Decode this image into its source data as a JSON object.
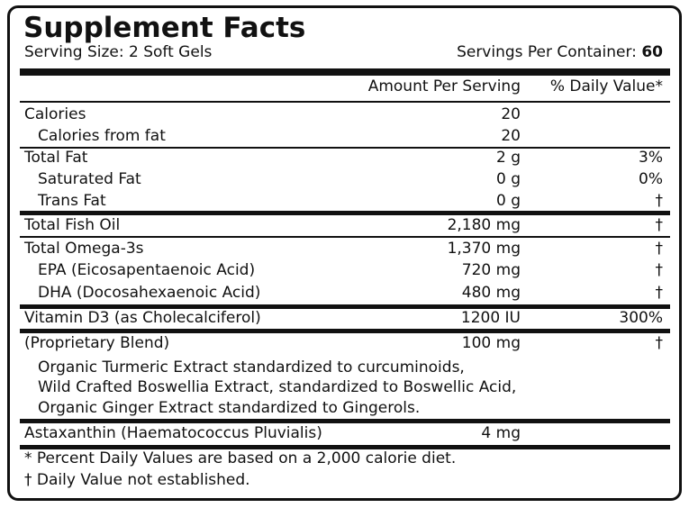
{
  "header": {
    "title": "Supplement Facts",
    "serving_size": "Serving Size: 2 Soft Gels",
    "servings_per_container_label": "Servings Per Container:",
    "servings_per_container": 60
  },
  "table": {
    "columns": [
      "Amount Per Serving",
      "% Daily Value*"
    ],
    "rows": [
      [
        "Calories",
        20
      ],
      [
        "Calories from fat",
        20
      ],
      [
        "Total Fat",
        "2 g",
        "3%"
      ],
      [
        "Saturated Fat",
        "0 g",
        "0%"
      ],
      [
        "Trans Fat",
        "0 g",
        "†"
      ],
      [
        "Total Fish Oil",
        "2,180 mg",
        "†"
      ],
      [
        "Total Omega-3s",
        "1,370 mg",
        "†"
      ],
      [
        "EPA (Eicosapentaenoic Acid)",
        "720 mg",
        "†"
      ],
      [
        "DHA (Docosahexaenoic Acid)",
        "480 mg",
        "†"
      ],
      [
        "Vitamin D3 (as Cholecalciferol)",
        "1200 IU",
        "300%"
      ],
      [
        "(Proprietary Blend)",
        "100 mg",
        "†"
      ],
      [
        "Astaxanthin (Haematococcus Pluvialis)",
        "4 mg"
      ]
    ],
    "blend_description": [
      "Organic Turmeric Extract standardized to curcuminoids,",
      "Wild Crafted Boswellia Extract, standardized to Boswellic Acid,",
      "Organic Ginger Extract standardized to Gingerols."
    ]
  },
  "footnotes": [
    "* Percent Daily Values are based on a 2,000 calorie diet.",
    "† Daily Value not established."
  ]
}
